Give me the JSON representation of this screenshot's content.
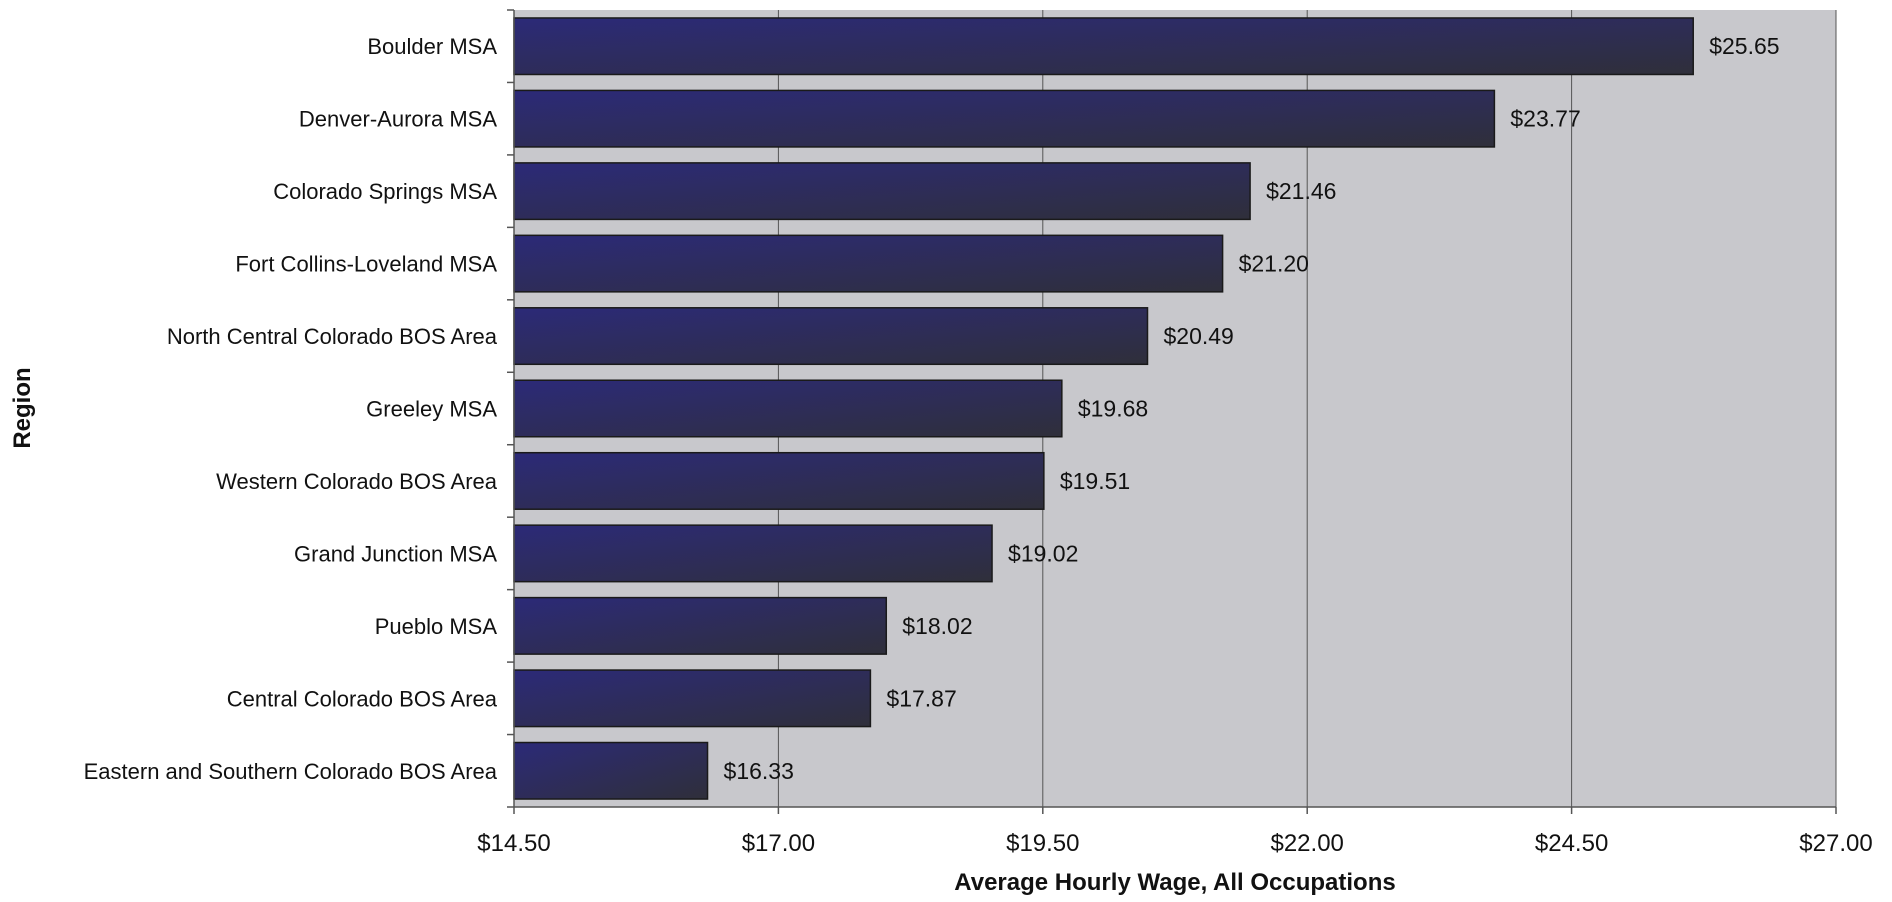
{
  "chart_data": {
    "type": "bar",
    "orientation": "horizontal",
    "title": "",
    "xlabel": "Average Hourly Wage, All Occupations",
    "ylabel": "Region",
    "xlim": [
      14.5,
      27.0
    ],
    "xticks": [
      14.5,
      17.0,
      19.5,
      22.0,
      24.5,
      27.0
    ],
    "xtick_labels": [
      "$14.50",
      "$17.00",
      "$19.50",
      "$22.00",
      "$24.50",
      "$27.00"
    ],
    "grid": "vertical",
    "categories": [
      "Boulder MSA",
      "Denver-Aurora MSA",
      "Colorado Springs MSA",
      "Fort Collins-Loveland MSA",
      "North Central Colorado BOS Area",
      "Greeley MSA",
      "Western Colorado BOS Area",
      "Grand Junction MSA",
      "Pueblo MSA",
      "Central Colorado BOS Area",
      "Eastern and Southern Colorado BOS Area"
    ],
    "values": [
      25.65,
      23.77,
      21.46,
      21.2,
      20.49,
      19.68,
      19.51,
      19.02,
      18.02,
      17.87,
      16.33
    ],
    "data_labels": [
      "$25.65",
      "$23.77",
      "$21.46",
      "$21.20",
      "$20.49",
      "$19.68",
      "$19.51",
      "$19.02",
      "$18.02",
      "$17.87",
      "$16.33"
    ],
    "colors": {
      "bar_start": "#2c2a78",
      "bar_end": "#2f2f3a",
      "plot_background": "#c8c8cc",
      "gridline": "#555555"
    }
  }
}
